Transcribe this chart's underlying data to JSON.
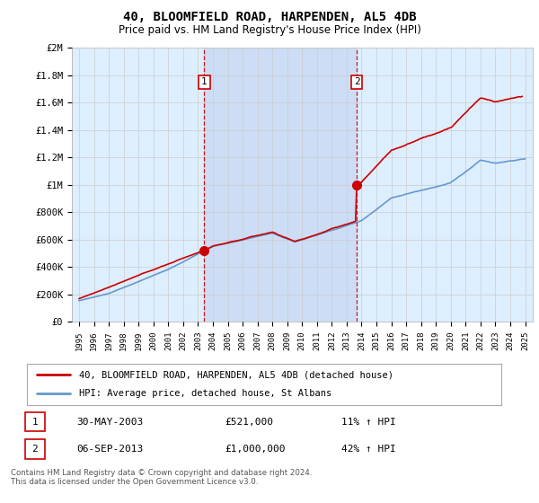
{
  "title": "40, BLOOMFIELD ROAD, HARPENDEN, AL5 4DB",
  "subtitle": "Price paid vs. HM Land Registry's House Price Index (HPI)",
  "legend_line1": "40, BLOOMFIELD ROAD, HARPENDEN, AL5 4DB (detached house)",
  "legend_line2": "HPI: Average price, detached house, St Albans",
  "transaction1_date": "30-MAY-2003",
  "transaction1_price": "£521,000",
  "transaction1_pct": "11% ↑ HPI",
  "transaction2_date": "06-SEP-2013",
  "transaction2_price": "£1,000,000",
  "transaction2_pct": "42% ↑ HPI",
  "footer": "Contains HM Land Registry data © Crown copyright and database right 2024.\nThis data is licensed under the Open Government Licence v3.0.",
  "red_color": "#cc0000",
  "blue_color": "#6699cc",
  "background_plot": "#ddeeff",
  "shading_color": "#ccddf5",
  "transaction1_year": 2003.42,
  "transaction2_year": 2013.67,
  "ylim": [
    0,
    2000000
  ],
  "xlim_start": 1994.5,
  "xlim_end": 2025.5
}
